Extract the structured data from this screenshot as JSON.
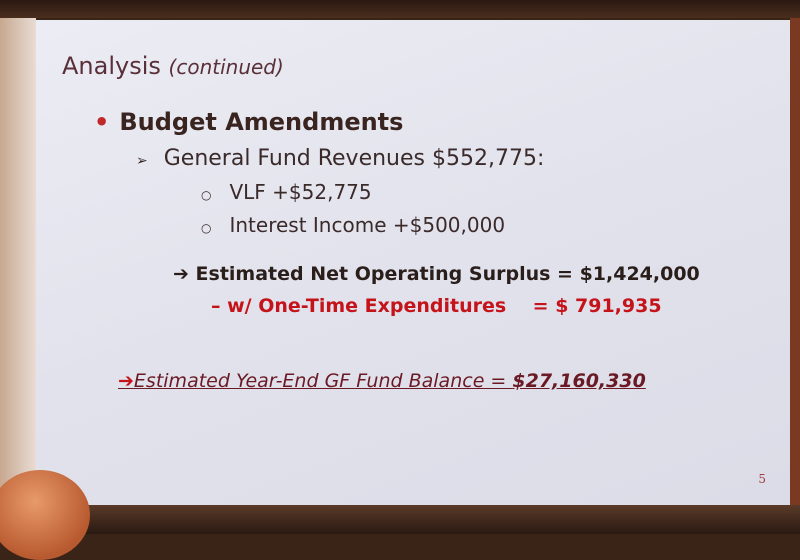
{
  "slide": {
    "title": "Analysis",
    "title_suffix": "(continued)",
    "bullet": "Budget Amendments",
    "sub_bullet": "General Fund Revenues $552,775:",
    "items": [
      "VLF  +$52,775",
      "Interest Income +$500,000"
    ],
    "surplus": "Estimated Net Operating Surplus = $1,424,000",
    "one_time_label": "– w/ One-Time Expenditures",
    "one_time_value": "= $  791,935",
    "balance_label": "Estimated Year-End GF Fund Balance = ",
    "balance_value": "$27,160,330",
    "page_number": "5"
  },
  "colors": {
    "accent_red": "#c4141a",
    "title": "#5a3038",
    "background": "#e4e4ee"
  }
}
